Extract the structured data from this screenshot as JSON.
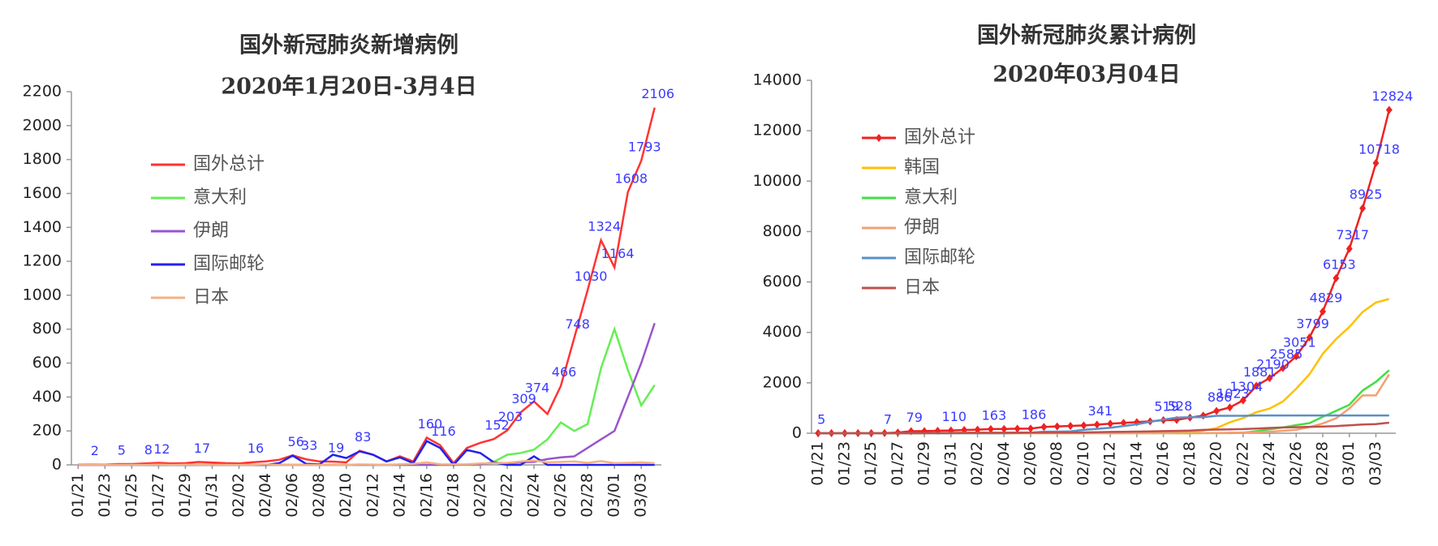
{
  "chart_data": [
    {
      "type": "line",
      "title": "国外新冠肺炎新增病例",
      "subtitle": "2020年1月20日-3月4日",
      "categories": [
        "01/21",
        null,
        "01/23",
        null,
        "01/25",
        null,
        "01/27",
        null,
        "01/29",
        null,
        "01/31",
        null,
        "02/02",
        null,
        "02/04",
        null,
        "02/06",
        null,
        "02/08",
        null,
        "02/10",
        null,
        "02/12",
        null,
        "02/14",
        null,
        "02/16",
        null,
        "02/18",
        null,
        "02/20",
        null,
        "02/22",
        null,
        "02/24",
        null,
        "02/26",
        null,
        "02/28",
        null,
        "03/01",
        null,
        "03/03",
        null
      ],
      "ylim": [
        0,
        2200
      ],
      "yticks": [
        0,
        200,
        400,
        600,
        800,
        1000,
        1200,
        1400,
        1600,
        1800,
        2000,
        2200
      ],
      "grid": false,
      "legend": "upper left",
      "label_color": "#3a3aff",
      "series": [
        {
          "name": "国外总计",
          "color": "#ff3333",
          "values": [
            1,
            2,
            1,
            5,
            5,
            8,
            12,
            8,
            10,
            17,
            14,
            10,
            8,
            16,
            20,
            30,
            56,
            33,
            20,
            19,
            15,
            83,
            60,
            20,
            50,
            20,
            160,
            116,
            10,
            100,
            130,
            152,
            203,
            309,
            374,
            300,
            466,
            748,
            1030,
            1324,
            1164,
            1608,
            1793,
            2106
          ],
          "value_labels": [
            null,
            "2",
            null,
            "5",
            null,
            "8",
            "12",
            null,
            null,
            "17",
            null,
            null,
            null,
            "16",
            null,
            null,
            "56",
            "33",
            null,
            "19",
            null,
            "83",
            null,
            null,
            null,
            null,
            "160",
            "116",
            null,
            null,
            null,
            "152",
            "203",
            "309",
            "374",
            null,
            "466",
            "748",
            "1030",
            "1324",
            "1164",
            "1608",
            "1793",
            "2106"
          ]
        },
        {
          "name": "意大利",
          "color": "#66ee55",
          "values": [
            0,
            0,
            0,
            0,
            0,
            0,
            0,
            0,
            0,
            0,
            0,
            0,
            0,
            0,
            0,
            0,
            0,
            0,
            0,
            0,
            0,
            0,
            0,
            0,
            0,
            0,
            0,
            0,
            0,
            0,
            0,
            17,
            60,
            70,
            90,
            150,
            250,
            200,
            240,
            570,
            800,
            560,
            350,
            470
          ]
        },
        {
          "name": "伊朗",
          "color": "#9955cc",
          "values": [
            0,
            0,
            0,
            0,
            0,
            0,
            0,
            0,
            0,
            0,
            0,
            0,
            0,
            0,
            0,
            0,
            0,
            0,
            0,
            0,
            0,
            0,
            0,
            0,
            0,
            0,
            0,
            0,
            0,
            2,
            3,
            13,
            10,
            15,
            18,
            34,
            44,
            50,
            100,
            150,
            200,
            400,
            600,
            835
          ]
        },
        {
          "name": "国际邮轮",
          "color": "#2222ee",
          "values": [
            0,
            0,
            0,
            0,
            0,
            0,
            0,
            0,
            0,
            0,
            0,
            0,
            0,
            0,
            0,
            10,
            55,
            6,
            3,
            60,
            40,
            80,
            60,
            20,
            44,
            10,
            140,
            100,
            0,
            88,
            70,
            15,
            0,
            0,
            50,
            0,
            0,
            0,
            0,
            0,
            0,
            0,
            0,
            0
          ]
        },
        {
          "name": "日本",
          "color": "#f4b183",
          "values": [
            0,
            0,
            0,
            0,
            0,
            0,
            1,
            0,
            1,
            0,
            0,
            0,
            0,
            0,
            3,
            0,
            0,
            0,
            0,
            0,
            0,
            3,
            2,
            0,
            4,
            6,
            15,
            4,
            3,
            4,
            8,
            10,
            12,
            20,
            26,
            15,
            17,
            20,
            12,
            22,
            10,
            12,
            15,
            10
          ]
        }
      ]
    },
    {
      "type": "line",
      "title": "国外新冠肺炎累计病例",
      "subtitle": "2020年03月04日",
      "categories": [
        "01/21",
        null,
        "01/23",
        null,
        "01/25",
        null,
        "01/27",
        null,
        "01/29",
        null,
        "01/31",
        null,
        "02/02",
        null,
        "02/04",
        null,
        "02/06",
        null,
        "02/08",
        null,
        "02/10",
        null,
        "02/12",
        null,
        "02/14",
        null,
        "02/16",
        null,
        "02/18",
        null,
        "02/20",
        null,
        "02/22",
        null,
        "02/24",
        null,
        "02/26",
        null,
        "02/28",
        null,
        "03/01",
        null,
        "03/03",
        null
      ],
      "ylim": [
        0,
        14000
      ],
      "yticks": [
        0,
        2000,
        4000,
        6000,
        8000,
        10000,
        12000,
        14000
      ],
      "grid": false,
      "legend": "upper left",
      "label_color": "#3a3aff",
      "series": [
        {
          "name": "国外总计",
          "color": "#ee2222",
          "marker": "diamond",
          "values": [
            5,
            5,
            5,
            6,
            6,
            7,
            30,
            79,
            85,
            95,
            110,
            130,
            140,
            163,
            170,
            180,
            186,
            250,
            270,
            290,
            310,
            341,
            380,
            410,
            440,
            470,
            519,
            528,
            620,
            700,
            886,
            1023,
            1304,
            1881,
            2190,
            2585,
            3051,
            3799,
            4829,
            6153,
            7317,
            8925,
            10718,
            12824
          ],
          "value_labels": [
            "5",
            null,
            null,
            null,
            null,
            "7",
            null,
            "79",
            null,
            null,
            "110",
            null,
            null,
            "163",
            null,
            null,
            "186",
            null,
            null,
            null,
            null,
            "341",
            null,
            null,
            null,
            null,
            "519",
            "528",
            null,
            null,
            "886",
            "1023",
            "1304",
            "1881",
            "2190",
            "2585",
            "3051",
            "3799",
            "4829",
            "6153",
            "7317",
            "8925",
            "10718",
            "12824"
          ]
        },
        {
          "name": "韩国",
          "color": "#ffc000",
          "values": [
            1,
            1,
            2,
            2,
            3,
            4,
            4,
            4,
            11,
            11,
            12,
            15,
            15,
            16,
            19,
            23,
            24,
            24,
            25,
            27,
            28,
            28,
            28,
            28,
            29,
            30,
            31,
            31,
            51,
            104,
            204,
            433,
            602,
            833,
            977,
            1261,
            1766,
            2337,
            3150,
            3736,
            4212,
            4812,
            5186,
            5328
          ]
        },
        {
          "name": "意大利",
          "color": "#44dd44",
          "values": [
            0,
            0,
            0,
            0,
            0,
            0,
            0,
            0,
            0,
            0,
            2,
            2,
            2,
            2,
            2,
            2,
            2,
            2,
            2,
            2,
            2,
            2,
            2,
            2,
            2,
            2,
            2,
            2,
            2,
            2,
            2,
            3,
            20,
            79,
            157,
            229,
            322,
            400,
            650,
            888,
            1128,
            1694,
            2036,
            2502
          ]
        },
        {
          "name": "伊朗",
          "color": "#f4a070",
          "values": [
            0,
            0,
            0,
            0,
            0,
            0,
            0,
            0,
            0,
            0,
            0,
            0,
            0,
            0,
            0,
            0,
            0,
            0,
            0,
            0,
            0,
            0,
            0,
            0,
            0,
            0,
            0,
            0,
            0,
            2,
            5,
            18,
            28,
            43,
            61,
            95,
            139,
            245,
            388,
            593,
            978,
            1501,
            1501,
            2336
          ]
        },
        {
          "name": "国际邮轮",
          "color": "#5b8fc9",
          "values": [
            0,
            0,
            0,
            0,
            0,
            0,
            0,
            0,
            0,
            0,
            0,
            0,
            0,
            0,
            0,
            10,
            20,
            61,
            64,
            70,
            135,
            175,
            218,
            285,
            355,
            454,
            542,
            621,
            634,
            634,
            691,
            691,
            691,
            705,
            705,
            705,
            705,
            705,
            705,
            705,
            705,
            705,
            705,
            706
          ]
        },
        {
          "name": "日本",
          "color": "#c0504d",
          "values": [
            0,
            0,
            0,
            1,
            1,
            2,
            2,
            4,
            7,
            11,
            14,
            17,
            20,
            20,
            20,
            25,
            25,
            26,
            28,
            28,
            33,
            41,
            53,
            59,
            65,
            73,
            84,
            93,
            105,
            132,
            144,
            156,
            164,
            186,
            210,
            230,
            239,
            254,
            268,
            284,
            317,
            349,
            360,
            420
          ]
        }
      ]
    }
  ]
}
